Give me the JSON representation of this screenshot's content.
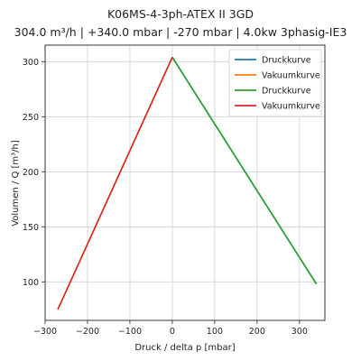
{
  "chart_data": {
    "type": "line",
    "title": "K06MS-4-3ph-ATEX II 3GD",
    "subtitle": "304.0 m³/h | +340.0 mbar | -270 mbar | 4.0kw 3phasig-IE3",
    "xlabel": "Druck / delta p [mbar]",
    "ylabel": "Volumen / Q [m³/h]",
    "xlim": [
      -300,
      360
    ],
    "ylim": [
      65,
      315
    ],
    "xticks": [
      -300,
      -200,
      -100,
      0,
      100,
      200,
      300
    ],
    "xtick_labels": [
      "−300",
      "−200",
      "−100",
      "0",
      "100",
      "200",
      "300"
    ],
    "yticks": [
      100,
      150,
      200,
      250,
      300
    ],
    "ytick_labels": [
      "100",
      "150",
      "200",
      "250",
      "300"
    ],
    "grid": true,
    "legend_position": "top-right",
    "series": [
      {
        "name": "Druckkurve",
        "color": "#1f77b4",
        "x": [
          0,
          340
        ],
        "y": [
          304,
          98
        ]
      },
      {
        "name": "Vakuumkurve",
        "color": "#ff7f0e",
        "x": [
          0,
          -270
        ],
        "y": [
          304,
          75
        ]
      },
      {
        "name": "Druckkurve",
        "color": "#2ca02c",
        "x": [
          0,
          340
        ],
        "y": [
          304,
          98
        ]
      },
      {
        "name": "Vakuumkurve",
        "color": "#d62728",
        "x": [
          0,
          -270
        ],
        "y": [
          304,
          75
        ]
      }
    ]
  }
}
